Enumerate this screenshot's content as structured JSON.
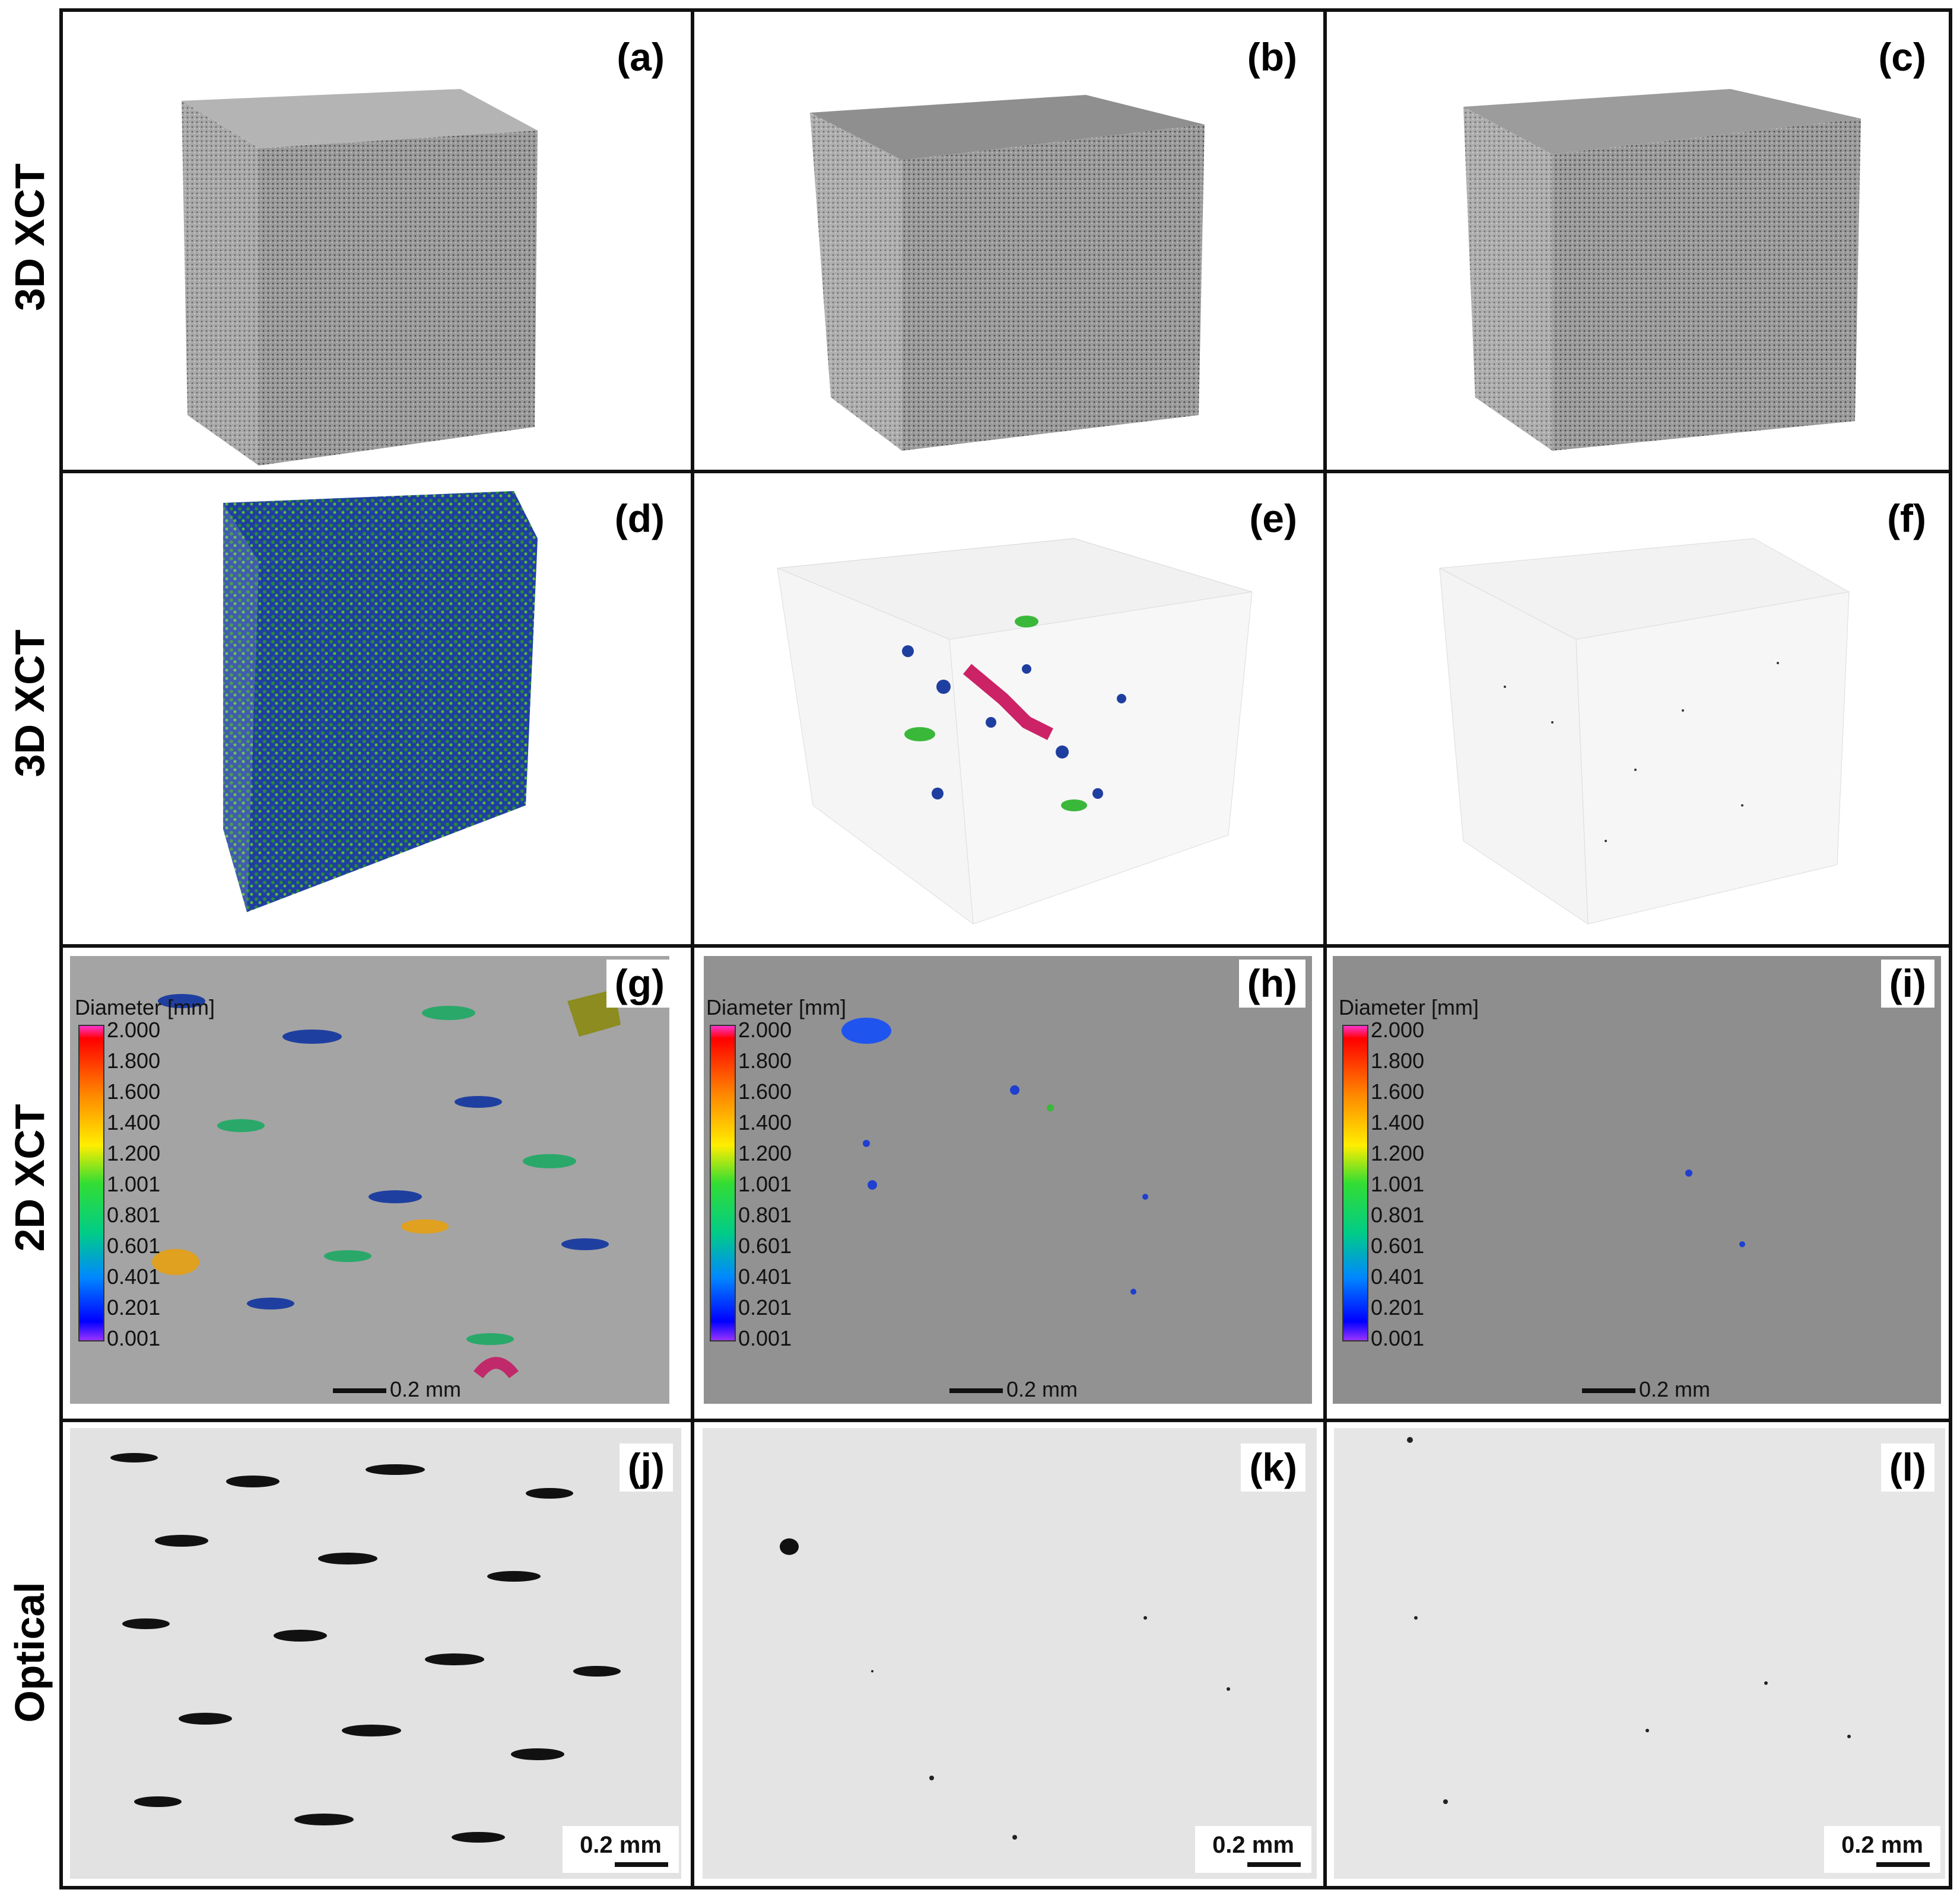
{
  "row_labels": [
    "3D XCT",
    "3D XCT",
    "2D XCT",
    "Optical"
  ],
  "panels": {
    "a": "(a)",
    "b": "(b)",
    "c": "(c)",
    "d": "(d)",
    "e": "(e)",
    "f": "(f)",
    "g": "(g)",
    "h": "(h)",
    "i": "(i)",
    "j": "(j)",
    "k": "(k)",
    "l": "(l)"
  },
  "legend": {
    "title": "Diameter [mm]",
    "ticks": [
      "2.000",
      "1.800",
      "1.600",
      "1.400",
      "1.200",
      "1.001",
      "0.801",
      "0.601",
      "0.401",
      "0.201",
      "0.001"
    ]
  },
  "scale_label": "0.2 mm",
  "colors": {
    "border": "#111111",
    "xct_gray": "#8c8c8c",
    "optical_bg": "#e6e6e6"
  }
}
